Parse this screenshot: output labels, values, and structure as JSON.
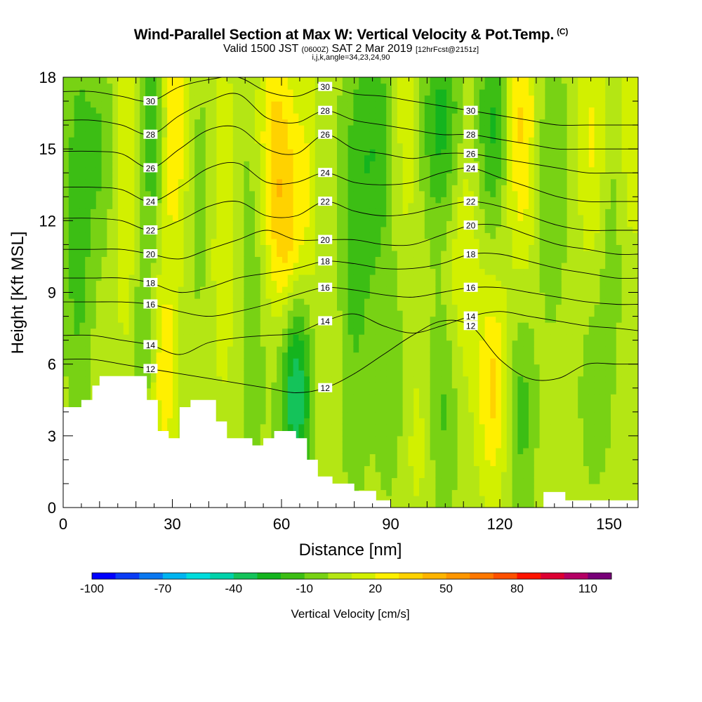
{
  "title": {
    "main": "Wind-Parallel Section at Max W: Vertical Velocity & Pot.Temp.",
    "copyright": "(C)",
    "valid_prefix": "Valid 1500 JST",
    "valid_utc": "(0600Z)",
    "valid_date": "SAT 2 Mar 2019",
    "forecast": "[12hrFcst@2151z]",
    "indices": "i,j,k,angle=34,23,24,90"
  },
  "chart_data": {
    "type": "heatmap",
    "xlabel": "Distance [nm]",
    "ylabel": "Height [Kft MSL]",
    "xlim": [
      0,
      158
    ],
    "ylim": [
      0,
      18
    ],
    "x_ticks": [
      0,
      30,
      60,
      90,
      120,
      150
    ],
    "y_ticks": [
      0,
      3,
      6,
      9,
      12,
      15,
      18
    ],
    "colorbar": {
      "title": "Vertical Velocity [cm/s]",
      "tick_labels": [
        -100,
        -70,
        -40,
        -10,
        20,
        50,
        80,
        110
      ],
      "levels": [
        -100,
        -90,
        -80,
        -70,
        -60,
        -50,
        -40,
        -30,
        -20,
        -10,
        0,
        10,
        20,
        30,
        40,
        50,
        60,
        70,
        80,
        90,
        100,
        110,
        120
      ],
      "colors": [
        "#0000ff",
        "#0a3cf5",
        "#0a78f0",
        "#00b4f0",
        "#00dcdc",
        "#00d2aa",
        "#14c35a",
        "#14b41e",
        "#3cbe14",
        "#78d214",
        "#b4e614",
        "#d2f000",
        "#fff000",
        "#ffd200",
        "#ffb400",
        "#ff9600",
        "#ff7800",
        "#ff5000",
        "#ff1400",
        "#dc0032",
        "#b40064",
        "#780078"
      ]
    },
    "terrain_kft": [
      [
        0,
        4.2
      ],
      [
        5,
        4.2
      ],
      [
        5,
        4.5
      ],
      [
        8,
        4.5
      ],
      [
        8,
        5.1
      ],
      [
        10,
        5.1
      ],
      [
        10,
        5.5
      ],
      [
        23,
        5.5
      ],
      [
        23,
        4.5
      ],
      [
        26,
        4.5
      ],
      [
        26,
        3.2
      ],
      [
        29,
        3.2
      ],
      [
        29,
        2.9
      ],
      [
        32,
        2.9
      ],
      [
        32,
        4.2
      ],
      [
        35,
        4.2
      ],
      [
        35,
        4.5
      ],
      [
        42,
        4.5
      ],
      [
        42,
        3.6
      ],
      [
        45,
        3.6
      ],
      [
        45,
        2.9
      ],
      [
        52,
        2.9
      ],
      [
        52,
        2.6
      ],
      [
        55,
        2.6
      ],
      [
        55,
        2.9
      ],
      [
        58,
        2.9
      ],
      [
        58,
        3.2
      ],
      [
        64,
        3.2
      ],
      [
        64,
        2.9
      ],
      [
        67,
        2.9
      ],
      [
        67,
        2.0
      ],
      [
        70,
        2.0
      ],
      [
        70,
        1.3
      ],
      [
        74,
        1.3
      ],
      [
        74,
        1.0
      ],
      [
        80,
        1.0
      ],
      [
        80,
        0.7
      ],
      [
        86,
        0.7
      ],
      [
        86,
        0.3
      ],
      [
        90,
        0.3
      ],
      [
        90,
        0.0
      ],
      [
        132,
        0.0
      ],
      [
        132,
        0.65
      ],
      [
        138,
        0.65
      ],
      [
        138,
        0.3
      ],
      [
        158,
        0.3
      ]
    ],
    "theta_contours": [
      {
        "value": 12,
        "label": "12",
        "y_kft": [
          6.2,
          6.2,
          6.0,
          5.8,
          5.6,
          5.4,
          5.2,
          5.0,
          4.8,
          5.0,
          5.6,
          6.4,
          7.2,
          7.8,
          7.6,
          6.2,
          5.4,
          5.4,
          6.0,
          6.0,
          6.0
        ]
      },
      {
        "value": 14,
        "label": "14",
        "y_kft": [
          7.2,
          7.2,
          7.0,
          6.8,
          6.4,
          6.9,
          7.1,
          7.2,
          7.3,
          7.8,
          8.1,
          7.6,
          7.3,
          7.6,
          8.0,
          8.2,
          8.0,
          7.8,
          7.6,
          7.5,
          7.4
        ]
      },
      {
        "value": 16,
        "label": "16",
        "y_kft": [
          8.6,
          8.6,
          8.6,
          8.5,
          8.2,
          8.0,
          8.2,
          8.5,
          8.9,
          9.2,
          9.1,
          8.9,
          8.8,
          9.0,
          9.2,
          9.2,
          9.0,
          8.8,
          8.6,
          8.5,
          8.5
        ]
      },
      {
        "value": 18,
        "label": "18",
        "y_kft": [
          9.6,
          9.6,
          9.6,
          9.4,
          9.0,
          9.2,
          9.6,
          9.8,
          10.0,
          10.3,
          10.2,
          10.0,
          10.0,
          10.2,
          10.6,
          10.6,
          10.3,
          10.0,
          9.8,
          9.6,
          9.6
        ]
      },
      {
        "value": 20,
        "label": "20",
        "y_kft": [
          10.8,
          10.8,
          10.8,
          10.6,
          10.4,
          10.8,
          11.2,
          11.6,
          11.2,
          11.2,
          11.2,
          11.0,
          11.0,
          11.4,
          11.8,
          11.8,
          11.4,
          11.0,
          10.8,
          10.6,
          10.6
        ]
      },
      {
        "value": 22,
        "label": "22",
        "y_kft": [
          12.1,
          12.1,
          12.0,
          11.6,
          12.0,
          12.6,
          12.8,
          12.2,
          12.2,
          12.8,
          12.4,
          12.2,
          12.3,
          12.6,
          12.8,
          12.6,
          12.2,
          11.8,
          11.6,
          11.6,
          11.6
        ]
      },
      {
        "value": 24,
        "label": "24",
        "y_kft": [
          13.4,
          13.4,
          13.3,
          12.8,
          13.4,
          14.2,
          14.4,
          13.6,
          13.6,
          14.0,
          13.6,
          13.5,
          13.6,
          14.0,
          14.2,
          13.8,
          13.4,
          13.0,
          12.8,
          12.8,
          12.8
        ]
      },
      {
        "value": 26,
        "label": "26",
        "y_kft": [
          14.9,
          14.9,
          14.8,
          14.2,
          15.0,
          15.8,
          15.9,
          15.0,
          14.8,
          15.6,
          15.0,
          14.8,
          14.6,
          14.8,
          14.8,
          14.6,
          14.4,
          14.2,
          14.0,
          14.0,
          14.0
        ]
      },
      {
        "value": 28,
        "label": "28",
        "y_kft": [
          16.2,
          16.2,
          16.0,
          15.6,
          16.4,
          17.0,
          17.3,
          16.3,
          16.1,
          16.6,
          16.2,
          16.0,
          15.8,
          15.6,
          15.6,
          15.4,
          15.2,
          15.0,
          15.0,
          15.0,
          15.0
        ]
      },
      {
        "value": 30,
        "label": "30",
        "y_kft": [
          17.4,
          17.4,
          17.2,
          17.0,
          17.6,
          17.9,
          18.0,
          17.4,
          17.2,
          17.6,
          17.3,
          17.2,
          17.0,
          16.8,
          16.6,
          16.4,
          16.2,
          16.0,
          16.0,
          16.0,
          16.0
        ]
      }
    ],
    "contour_x_nm": [
      0,
      8,
      16,
      24,
      32,
      40,
      48,
      56,
      64,
      72,
      80,
      88,
      96,
      104,
      112,
      120,
      128,
      136,
      144,
      152,
      158
    ],
    "vertical_velocity_features": [
      {
        "x_nm": 4,
        "z_kft": 12,
        "w": -22,
        "sx": 2.5,
        "sz": 5
      },
      {
        "x_nm": 10,
        "z_kft": 15,
        "w": -15,
        "sx": 3,
        "sz": 3
      },
      {
        "x_nm": 18,
        "z_kft": 14,
        "w": 14,
        "sx": 3,
        "sz": 6
      },
      {
        "x_nm": 25,
        "z_kft": 16,
        "w": -30,
        "sx": 2.5,
        "sz": 3
      },
      {
        "x_nm": 22,
        "z_kft": 8,
        "w": -18,
        "sx": 2,
        "sz": 3
      },
      {
        "x_nm": 30,
        "z_kft": 16,
        "w": 28,
        "sx": 3,
        "sz": 4
      },
      {
        "x_nm": 28,
        "z_kft": 5.5,
        "w": 22,
        "sx": 2.5,
        "sz": 3
      },
      {
        "x_nm": 38,
        "z_kft": 13,
        "w": -10,
        "sx": 3,
        "sz": 4
      },
      {
        "x_nm": 44,
        "z_kft": 12,
        "w": 16,
        "sx": 3,
        "sz": 5
      },
      {
        "x_nm": 52,
        "z_kft": 11,
        "w": -14,
        "sx": 3,
        "sz": 6
      },
      {
        "x_nm": 58,
        "z_kft": 15,
        "w": 30,
        "sx": 4,
        "sz": 4
      },
      {
        "x_nm": 62,
        "z_kft": 11,
        "w": 22,
        "sx": 3,
        "sz": 3
      },
      {
        "x_nm": 64,
        "z_kft": 5,
        "w": -45,
        "sx": 3,
        "sz": 3
      },
      {
        "x_nm": 67,
        "z_kft": 14,
        "w": 12,
        "sx": 2,
        "sz": 4
      },
      {
        "x_nm": 72,
        "z_kft": 8,
        "w": 6,
        "sx": 3,
        "sz": 3
      },
      {
        "x_nm": 80,
        "z_kft": 10,
        "w": -16,
        "sx": 3,
        "sz": 6
      },
      {
        "x_nm": 86,
        "z_kft": 15,
        "w": -22,
        "sx": 4,
        "sz": 4
      },
      {
        "x_nm": 90,
        "z_kft": 5,
        "w": -14,
        "sx": 3,
        "sz": 3
      },
      {
        "x_nm": 94,
        "z_kft": 16,
        "w": 14,
        "sx": 3,
        "sz": 4
      },
      {
        "x_nm": 98,
        "z_kft": 3,
        "w": 10,
        "sx": 4,
        "sz": 3
      },
      {
        "x_nm": 104,
        "z_kft": 16,
        "w": -28,
        "sx": 4,
        "sz": 3
      },
      {
        "x_nm": 104,
        "z_kft": 4,
        "w": -18,
        "sx": 3,
        "sz": 3
      },
      {
        "x_nm": 110,
        "z_kft": 11,
        "w": 16,
        "sx": 3,
        "sz": 4
      },
      {
        "x_nm": 118,
        "z_kft": 5,
        "w": 28,
        "sx": 3,
        "sz": 3
      },
      {
        "x_nm": 118,
        "z_kft": 16,
        "w": -26,
        "sx": 3,
        "sz": 3
      },
      {
        "x_nm": 126,
        "z_kft": 4,
        "w": -18,
        "sx": 2.5,
        "sz": 3
      },
      {
        "x_nm": 126,
        "z_kft": 16,
        "w": 28,
        "sx": 3,
        "sz": 4
      },
      {
        "x_nm": 134,
        "z_kft": 14,
        "w": -14,
        "sx": 3,
        "sz": 4
      },
      {
        "x_nm": 146,
        "z_kft": 15,
        "w": 20,
        "sx": 3,
        "sz": 4
      },
      {
        "x_nm": 150,
        "z_kft": 12,
        "w": -12,
        "sx": 3,
        "sz": 4
      },
      {
        "x_nm": 156,
        "z_kft": 16,
        "w": 14,
        "sx": 2.5,
        "sz": 4
      },
      {
        "x_nm": 146,
        "z_kft": 5,
        "w": -10,
        "sx": 3,
        "sz": 3
      }
    ],
    "background_w": 4
  }
}
